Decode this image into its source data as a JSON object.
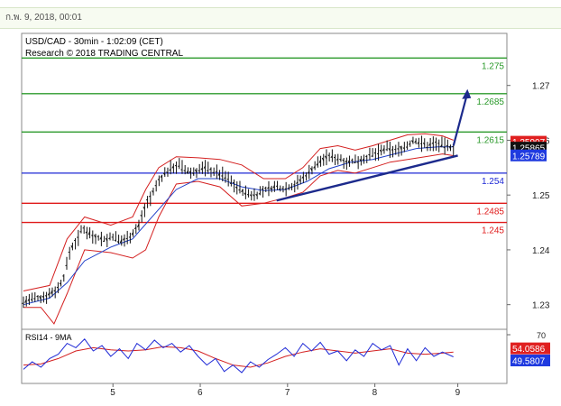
{
  "header": {
    "timestamp": "ก.พ. 9, 2018, 00:01"
  },
  "chart_data": [
    {
      "type": "line",
      "subtype": "candlestick-with-bollinger",
      "title": "USD/CAD - 30min - 1:02:09 (CET)",
      "subtitle": "Research © 2018 TRADING CENTRAL",
      "ylim": [
        1.2255,
        1.2795
      ],
      "x_ticks": [
        "5",
        "6",
        "7",
        "8",
        "9"
      ],
      "y_ticks": [
        {
          "value": 1.27,
          "label": "1.27"
        },
        {
          "value": 1.26,
          "label": "1.26"
        },
        {
          "value": 1.25,
          "label": "1.25"
        },
        {
          "value": 1.24,
          "label": "1.24"
        },
        {
          "value": 1.23,
          "label": "1.23"
        }
      ],
      "levels": [
        {
          "value": 1.275,
          "label": "1.275",
          "color": "#2b9a2b",
          "role": "resistance"
        },
        {
          "value": 1.2685,
          "label": "1.2685",
          "color": "#2b9a2b",
          "role": "resistance"
        },
        {
          "value": 1.2615,
          "label": "1.2615",
          "color": "#2b9a2b",
          "role": "resistance"
        },
        {
          "value": 1.254,
          "label": "1.254",
          "color": "#1f2ad6",
          "role": "pivot"
        },
        {
          "value": 1.2485,
          "label": "1.2485",
          "color": "#e01a1a",
          "role": "support"
        },
        {
          "value": 1.245,
          "label": "1.245",
          "color": "#e01a1a",
          "role": "support"
        }
      ],
      "price_badges": [
        {
          "value": 1.25907,
          "label": "1.25907",
          "color": "#e02020"
        },
        {
          "value": 1.25865,
          "label": "1.25865",
          "color": "#111111"
        },
        {
          "value": 1.25789,
          "label": "1.25789",
          "color": "#1f3adf"
        }
      ],
      "price_path": [
        [
          0.0,
          1.2305
        ],
        [
          0.02,
          1.231
        ],
        [
          0.04,
          1.2312
        ],
        [
          0.06,
          1.232
        ],
        [
          0.08,
          1.233
        ],
        [
          0.095,
          1.2355
        ],
        [
          0.105,
          1.2395
        ],
        [
          0.115,
          1.241
        ],
        [
          0.125,
          1.242
        ],
        [
          0.135,
          1.244
        ],
        [
          0.145,
          1.2435
        ],
        [
          0.16,
          1.2425
        ],
        [
          0.175,
          1.2422
        ],
        [
          0.19,
          1.2418
        ],
        [
          0.205,
          1.2425
        ],
        [
          0.22,
          1.2415
        ],
        [
          0.235,
          1.242
        ],
        [
          0.25,
          1.243
        ],
        [
          0.265,
          1.2445
        ],
        [
          0.275,
          1.247
        ],
        [
          0.285,
          1.249
        ],
        [
          0.295,
          1.25
        ],
        [
          0.31,
          1.2525
        ],
        [
          0.325,
          1.254
        ],
        [
          0.34,
          1.255
        ],
        [
          0.355,
          1.2555
        ],
        [
          0.37,
          1.2545
        ],
        [
          0.385,
          1.254
        ],
        [
          0.4,
          1.2545
        ],
        [
          0.415,
          1.255
        ],
        [
          0.43,
          1.2545
        ],
        [
          0.445,
          1.254
        ],
        [
          0.46,
          1.2535
        ],
        [
          0.475,
          1.2525
        ],
        [
          0.49,
          1.2515
        ],
        [
          0.505,
          1.2505
        ],
        [
          0.52,
          1.25
        ],
        [
          0.535,
          1.2502
        ],
        [
          0.55,
          1.2508
        ],
        [
          0.565,
          1.2512
        ],
        [
          0.58,
          1.2515
        ],
        [
          0.595,
          1.2512
        ],
        [
          0.61,
          1.2515
        ],
        [
          0.625,
          1.252
        ],
        [
          0.64,
          1.253
        ],
        [
          0.655,
          1.2542
        ],
        [
          0.67,
          1.2555
        ],
        [
          0.685,
          1.2565
        ],
        [
          0.7,
          1.257
        ],
        [
          0.715,
          1.2568
        ],
        [
          0.73,
          1.2565
        ],
        [
          0.745,
          1.256
        ],
        [
          0.76,
          1.2562
        ],
        [
          0.775,
          1.2565
        ],
        [
          0.79,
          1.257
        ],
        [
          0.805,
          1.2575
        ],
        [
          0.82,
          1.258
        ],
        [
          0.835,
          1.2585
        ],
        [
          0.85,
          1.258
        ],
        [
          0.865,
          1.2585
        ],
        [
          0.88,
          1.259
        ],
        [
          0.895,
          1.26
        ],
        [
          0.91,
          1.2595
        ],
        [
          0.925,
          1.259
        ],
        [
          0.94,
          1.2595
        ],
        [
          0.955,
          1.2592
        ],
        [
          0.97,
          1.2588
        ],
        [
          0.985,
          1.2586
        ]
      ],
      "upper_band": [
        [
          0.0,
          1.2325
        ],
        [
          0.06,
          1.2335
        ],
        [
          0.1,
          1.242
        ],
        [
          0.14,
          1.246
        ],
        [
          0.2,
          1.2445
        ],
        [
          0.25,
          1.246
        ],
        [
          0.28,
          1.251
        ],
        [
          0.31,
          1.255
        ],
        [
          0.35,
          1.257
        ],
        [
          0.4,
          1.2568
        ],
        [
          0.45,
          1.2565
        ],
        [
          0.5,
          1.2555
        ],
        [
          0.55,
          1.253
        ],
        [
          0.6,
          1.253
        ],
        [
          0.64,
          1.255
        ],
        [
          0.68,
          1.2585
        ],
        [
          0.72,
          1.259
        ],
        [
          0.76,
          1.2582
        ],
        [
          0.8,
          1.259
        ],
        [
          0.84,
          1.26
        ],
        [
          0.88,
          1.261
        ],
        [
          0.92,
          1.2612
        ],
        [
          0.96,
          1.2608
        ],
        [
          0.985,
          1.26
        ]
      ],
      "lower_band": [
        [
          0.0,
          1.2295
        ],
        [
          0.04,
          1.2295
        ],
        [
          0.07,
          1.2265
        ],
        [
          0.1,
          1.232
        ],
        [
          0.14,
          1.24
        ],
        [
          0.2,
          1.2395
        ],
        [
          0.25,
          1.2385
        ],
        [
          0.28,
          1.24
        ],
        [
          0.31,
          1.246
        ],
        [
          0.35,
          1.252
        ],
        [
          0.4,
          1.2525
        ],
        [
          0.45,
          1.2515
        ],
        [
          0.5,
          1.248
        ],
        [
          0.55,
          1.2485
        ],
        [
          0.6,
          1.2495
        ],
        [
          0.64,
          1.2505
        ],
        [
          0.68,
          1.2535
        ],
        [
          0.72,
          1.2545
        ],
        [
          0.76,
          1.254
        ],
        [
          0.8,
          1.255
        ],
        [
          0.84,
          1.256
        ],
        [
          0.88,
          1.2565
        ],
        [
          0.92,
          1.257
        ],
        [
          0.96,
          1.2575
        ],
        [
          0.985,
          1.2572
        ]
      ],
      "moving_average": [
        [
          0.0,
          1.23
        ],
        [
          0.06,
          1.2312
        ],
        [
          0.1,
          1.234
        ],
        [
          0.14,
          1.238
        ],
        [
          0.2,
          1.2405
        ],
        [
          0.25,
          1.242
        ],
        [
          0.3,
          1.2465
        ],
        [
          0.35,
          1.251
        ],
        [
          0.4,
          1.253
        ],
        [
          0.45,
          1.253
        ],
        [
          0.5,
          1.2515
        ],
        [
          0.55,
          1.2508
        ],
        [
          0.6,
          1.251
        ],
        [
          0.65,
          1.2525
        ],
        [
          0.7,
          1.2548
        ],
        [
          0.75,
          1.256
        ],
        [
          0.8,
          1.2565
        ],
        [
          0.85,
          1.2575
        ],
        [
          0.9,
          1.2585
        ],
        [
          0.95,
          1.2588
        ],
        [
          0.985,
          1.2588
        ]
      ],
      "trendlines": [
        {
          "from": [
            0.58,
            1.249
          ],
          "to": [
            0.995,
            1.2572
          ],
          "color": "#1c2a8c"
        }
      ],
      "arrow": {
        "from": [
          0.985,
          1.259
        ],
        "to": [
          1.015,
          1.269
        ],
        "color": "#1c2a8c"
      }
    },
    {
      "type": "line",
      "title": "RSI14 - 9MA",
      "ylim": [
        25,
        75
      ],
      "y_ticks": [
        {
          "value": 70,
          "label": "70"
        }
      ],
      "badges": [
        {
          "value": 54.0586,
          "label": "54.0586",
          "color": "#e02020"
        },
        {
          "value": 49.5807,
          "label": "49.5807",
          "color": "#1f3adf"
        }
      ],
      "rsi": [
        [
          0.0,
          38
        ],
        [
          0.02,
          45
        ],
        [
          0.04,
          40
        ],
        [
          0.06,
          48
        ],
        [
          0.08,
          52
        ],
        [
          0.1,
          62
        ],
        [
          0.12,
          58
        ],
        [
          0.14,
          66
        ],
        [
          0.16,
          55
        ],
        [
          0.18,
          60
        ],
        [
          0.2,
          50
        ],
        [
          0.22,
          57
        ],
        [
          0.24,
          48
        ],
        [
          0.26,
          62
        ],
        [
          0.28,
          56
        ],
        [
          0.3,
          65
        ],
        [
          0.32,
          58
        ],
        [
          0.34,
          62
        ],
        [
          0.36,
          54
        ],
        [
          0.38,
          60
        ],
        [
          0.4,
          50
        ],
        [
          0.42,
          42
        ],
        [
          0.44,
          48
        ],
        [
          0.46,
          36
        ],
        [
          0.48,
          42
        ],
        [
          0.5,
          35
        ],
        [
          0.52,
          45
        ],
        [
          0.54,
          40
        ],
        [
          0.56,
          47
        ],
        [
          0.58,
          52
        ],
        [
          0.6,
          58
        ],
        [
          0.62,
          50
        ],
        [
          0.64,
          62
        ],
        [
          0.66,
          55
        ],
        [
          0.68,
          63
        ],
        [
          0.7,
          52
        ],
        [
          0.72,
          55
        ],
        [
          0.74,
          46
        ],
        [
          0.76,
          56
        ],
        [
          0.78,
          50
        ],
        [
          0.8,
          62
        ],
        [
          0.82,
          56
        ],
        [
          0.84,
          60
        ],
        [
          0.86,
          42
        ],
        [
          0.88,
          57
        ],
        [
          0.9,
          46
        ],
        [
          0.92,
          58
        ],
        [
          0.94,
          50
        ],
        [
          0.96,
          54
        ],
        [
          0.985,
          49.6
        ]
      ],
      "rsi_ma": [
        [
          0.0,
          42
        ],
        [
          0.04,
          43
        ],
        [
          0.08,
          48
        ],
        [
          0.12,
          55
        ],
        [
          0.16,
          58
        ],
        [
          0.2,
          56
        ],
        [
          0.24,
          55
        ],
        [
          0.28,
          56
        ],
        [
          0.32,
          59
        ],
        [
          0.36,
          58
        ],
        [
          0.4,
          55
        ],
        [
          0.44,
          48
        ],
        [
          0.48,
          42
        ],
        [
          0.52,
          40
        ],
        [
          0.56,
          44
        ],
        [
          0.6,
          50
        ],
        [
          0.64,
          54
        ],
        [
          0.68,
          57
        ],
        [
          0.72,
          55
        ],
        [
          0.76,
          53
        ],
        [
          0.8,
          55
        ],
        [
          0.84,
          57
        ],
        [
          0.88,
          53
        ],
        [
          0.92,
          52
        ],
        [
          0.96,
          53
        ],
        [
          0.985,
          54
        ]
      ]
    }
  ]
}
